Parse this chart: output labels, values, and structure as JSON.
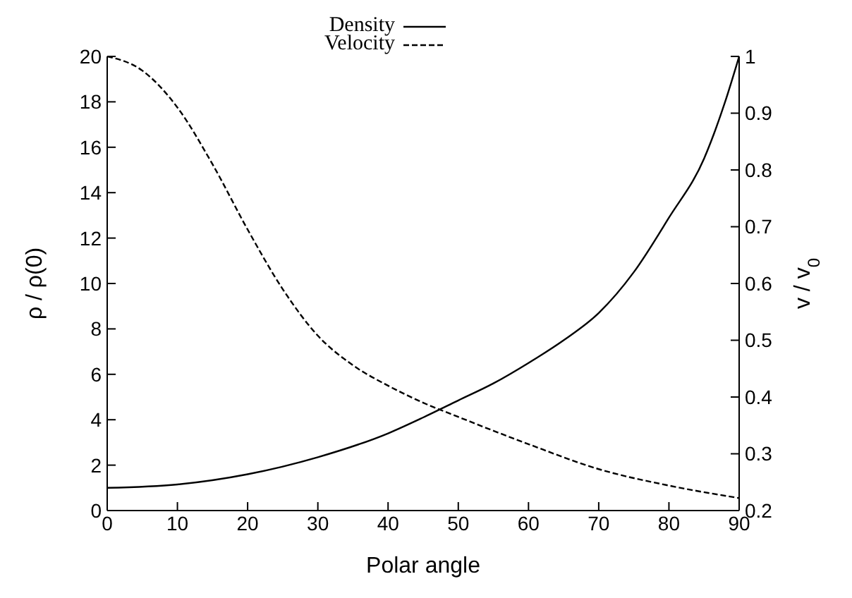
{
  "chart_data": {
    "type": "line",
    "xlabel": "Polar angle",
    "ylabel": "ρ / ρ(0)",
    "y2label": "v / v$_{0}$",
    "xlim": [
      0,
      90
    ],
    "xticks": [
      0,
      10,
      20,
      30,
      40,
      50,
      60,
      70,
      80,
      90
    ],
    "ylim": [
      0,
      20
    ],
    "yticks": [
      0,
      2,
      4,
      6,
      8,
      10,
      12,
      14,
      16,
      18,
      20
    ],
    "y2lim": [
      0.2,
      1
    ],
    "y2ticks": [
      0.2,
      0.3,
      0.4,
      0.5,
      0.6,
      0.7,
      0.8,
      0.9,
      1
    ],
    "legend": "top",
    "marker": "none",
    "series": [
      {
        "name": "Density",
        "color": "#000000",
        "line_style": "solid",
        "x": [
          0,
          10,
          20,
          30,
          40,
          45,
          50,
          55,
          60,
          65,
          70,
          75,
          80,
          85,
          88,
          90
        ],
        "values": [
          1,
          1.15,
          1.6,
          2.35,
          3.4,
          4.1,
          4.85,
          5.6,
          6.5,
          7.5,
          8.7,
          10.5,
          12.9,
          15.5,
          18,
          20
        ]
      },
      {
        "name": "Velocity",
        "color": "#000000",
        "line_style": "dashed",
        "axis": "y2",
        "x": [
          0,
          5,
          10,
          15,
          20,
          25,
          30,
          35,
          40,
          45,
          50,
          60,
          70,
          80,
          90
        ],
        "values": [
          1,
          0.975,
          0.91,
          0.81,
          0.695,
          0.59,
          0.508,
          0.456,
          0.42,
          0.39,
          0.365,
          0.317,
          0.273,
          0.244,
          0.222
        ]
      }
    ]
  }
}
